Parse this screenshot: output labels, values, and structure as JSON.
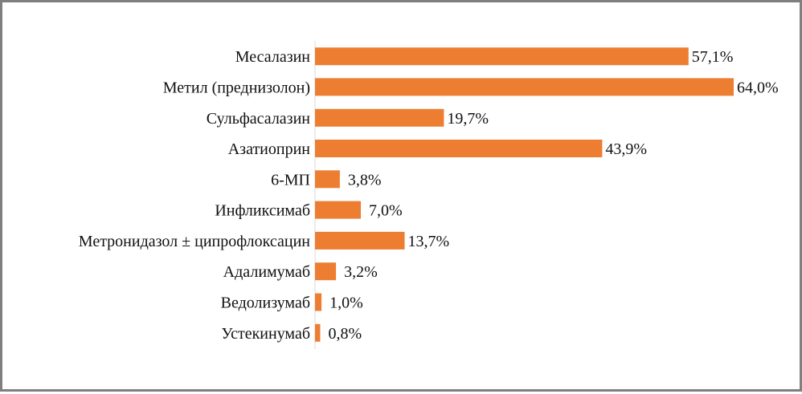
{
  "chart_data": {
    "type": "bar",
    "orientation": "horizontal",
    "title": "",
    "xlabel": "",
    "ylabel": "",
    "grid": false,
    "legend": "none",
    "bar_color": "#ed7d31",
    "xlim": [
      0,
      64
    ],
    "categories": [
      "Месалазин",
      "Метил (преднизолон)",
      "Сульфасалазин",
      "Азатиоприн",
      "6-МП",
      "Инфликсимаб",
      "Метронидазол ± ципрофлоксацин",
      "Адалимумаб",
      "Ведолизумаб",
      "Устекинумаб"
    ],
    "values": [
      57.1,
      64.0,
      19.7,
      43.9,
      3.8,
      7.0,
      13.7,
      3.2,
      1.0,
      0.8
    ],
    "value_labels": [
      "57,1%",
      "64,0%",
      "19,7%",
      "43,9%",
      "3,8%",
      "7,0%",
      "13,7%",
      "3,2%",
      "1,0%",
      "0,8%"
    ]
  }
}
